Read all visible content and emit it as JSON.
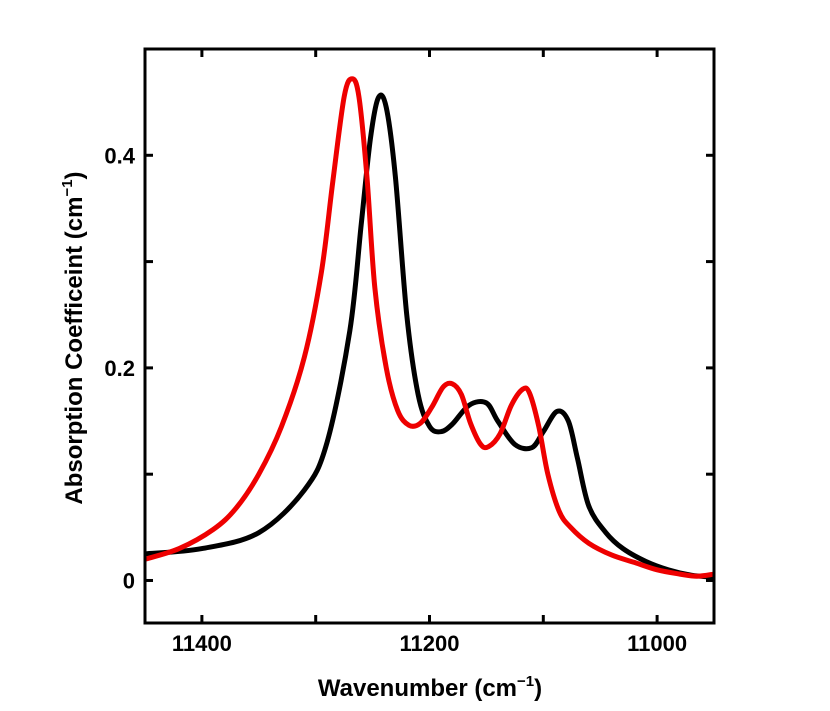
{
  "chart_data": {
    "type": "line",
    "title": "",
    "xlabel": {
      "text": "Wavenumber (cm",
      "sup": "−1",
      "close": ")"
    },
    "ylabel": {
      "text": "Absorption Coefficeint (cm",
      "sup": "−1",
      "close": ")"
    },
    "xlim": [
      11450,
      10950
    ],
    "ylim": [
      -0.04,
      0.5
    ],
    "x_reversed": true,
    "xticks": [
      11400,
      11200,
      11000
    ],
    "xtick_labels": [
      "11400",
      "11200",
      "11000"
    ],
    "yticks": [
      0,
      0.2,
      0.4
    ],
    "ytick_labels": [
      "0",
      "0.2",
      "0.4"
    ],
    "grid": false,
    "series": [
      {
        "name": "black",
        "color": "#000000",
        "x": [
          11450,
          11400,
          11350,
          11310,
          11290,
          11270,
          11260,
          11252,
          11245,
          11238,
          11230,
          11220,
          11210,
          11200,
          11190,
          11180,
          11165,
          11150,
          11140,
          11125,
          11110,
          11100,
          11088,
          11078,
          11070,
          11060,
          11045,
          11030,
          11010,
          10990,
          10970,
          10950
        ],
        "values": [
          0.025,
          0.03,
          0.045,
          0.085,
          0.13,
          0.235,
          0.335,
          0.415,
          0.454,
          0.445,
          0.38,
          0.25,
          0.175,
          0.145,
          0.14,
          0.147,
          0.165,
          0.167,
          0.15,
          0.128,
          0.125,
          0.14,
          0.159,
          0.15,
          0.115,
          0.07,
          0.045,
          0.03,
          0.018,
          0.01,
          0.005,
          0.003
        ]
      },
      {
        "name": "red",
        "color": "#ee0000",
        "x": [
          11450,
          11420,
          11390,
          11370,
          11350,
          11330,
          11310,
          11295,
          11285,
          11275,
          11268,
          11262,
          11255,
          11248,
          11238,
          11228,
          11218,
          11208,
          11198,
          11188,
          11180,
          11172,
          11164,
          11155,
          11148,
          11138,
          11128,
          11118,
          11112,
          11104,
          11096,
          11086,
          11076,
          11060,
          11040,
          11020,
          11000,
          10980,
          10965,
          10950
        ],
        "values": [
          0.02,
          0.03,
          0.048,
          0.068,
          0.1,
          0.145,
          0.21,
          0.29,
          0.375,
          0.455,
          0.472,
          0.455,
          0.38,
          0.275,
          0.2,
          0.16,
          0.146,
          0.148,
          0.163,
          0.182,
          0.185,
          0.175,
          0.148,
          0.128,
          0.126,
          0.138,
          0.165,
          0.18,
          0.176,
          0.145,
          0.1,
          0.065,
          0.05,
          0.035,
          0.024,
          0.017,
          0.01,
          0.006,
          0.004,
          0.006
        ]
      }
    ]
  }
}
